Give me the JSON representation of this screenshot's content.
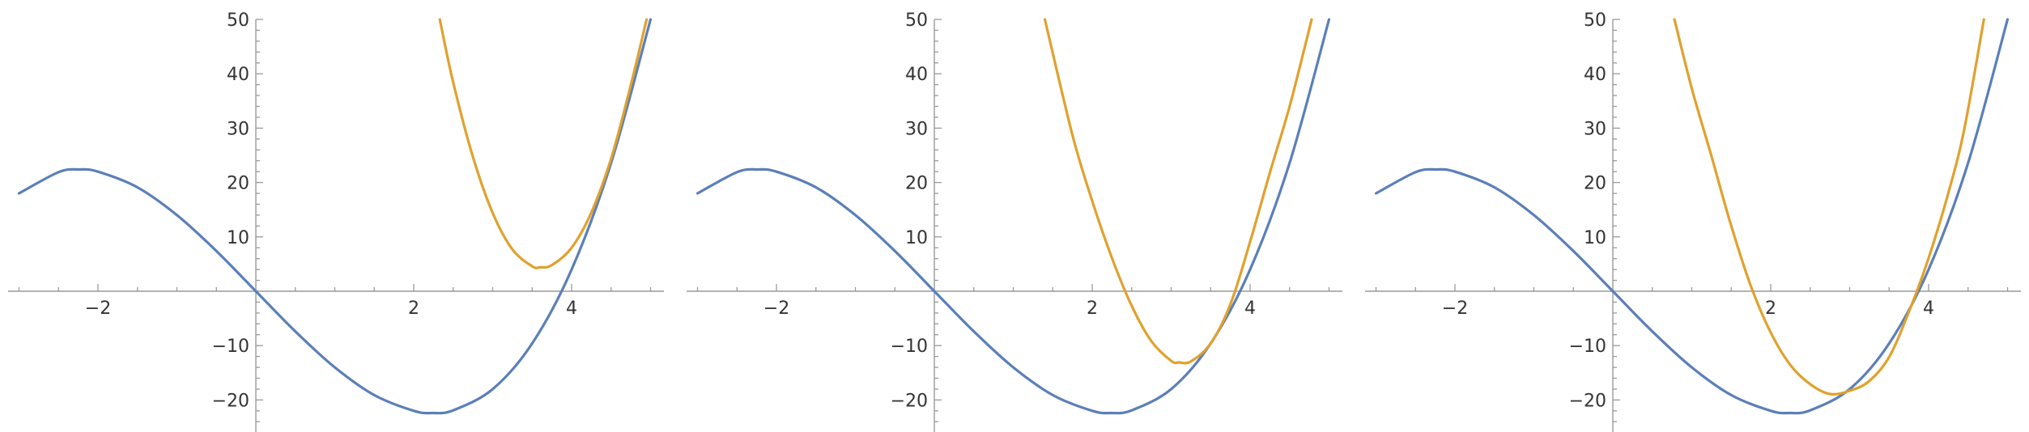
{
  "colors": {
    "background": "#ffffff",
    "axis": "#9a9a9a",
    "tick_label": "#333333",
    "series_1": "#5b7fb8",
    "series_2": "#e0a12e"
  },
  "chart_data": [
    {
      "type": "line",
      "xlim": [
        -3.1,
        5.2
      ],
      "ylim": [
        -25,
        50
      ],
      "grid": false,
      "legend": "none",
      "x_ticks": [
        {
          "v": -2,
          "t": "−2"
        },
        {
          "v": 2,
          "t": "2"
        },
        {
          "v": 4,
          "t": "4"
        }
      ],
      "y_ticks": [
        {
          "v": -20,
          "t": "−20"
        },
        {
          "v": -10,
          "t": "−10"
        },
        {
          "v": 10,
          "t": "10"
        },
        {
          "v": 20,
          "t": "20"
        },
        {
          "v": 30,
          "t": "30"
        },
        {
          "v": 40,
          "t": "40"
        },
        {
          "v": 50,
          "t": "50"
        }
      ],
      "series": [
        {
          "x": [
            -3.0,
            -2.5,
            -2.236,
            -2.0,
            -1.5,
            -1.0,
            -0.5,
            0.0,
            0.5,
            1.0,
            1.5,
            2.0,
            2.236,
            2.5,
            3.0,
            3.5,
            4.0,
            4.5,
            5.0
          ],
          "y": [
            18.0,
            21.9,
            22.4,
            22.0,
            19.1,
            14.0,
            7.4,
            0.0,
            -7.4,
            -14.0,
            -19.1,
            -22.0,
            -22.4,
            -21.9,
            -18.0,
            -9.6,
            4.0,
            23.6,
            50.0
          ]
        },
        {
          "x": [
            2.33,
            2.5,
            2.75,
            3.0,
            3.25,
            3.5,
            3.6,
            3.75,
            4.0,
            4.25,
            4.5,
            4.75,
            4.95
          ],
          "y": [
            50.0,
            38.4,
            24.7,
            14.4,
            7.7,
            4.6,
            4.4,
            4.8,
            8.0,
            14.5,
            24.4,
            37.9,
            50.0
          ]
        }
      ]
    },
    {
      "type": "line",
      "xlim": [
        -3.1,
        5.2
      ],
      "ylim": [
        -25,
        50
      ],
      "grid": false,
      "legend": "none",
      "x_ticks": [
        {
          "v": -2,
          "t": "−2"
        },
        {
          "v": 2,
          "t": "2"
        },
        {
          "v": 4,
          "t": "4"
        }
      ],
      "y_ticks": [
        {
          "v": -20,
          "t": "−20"
        },
        {
          "v": -10,
          "t": "−10"
        },
        {
          "v": 10,
          "t": "10"
        },
        {
          "v": 20,
          "t": "20"
        },
        {
          "v": 30,
          "t": "30"
        },
        {
          "v": 40,
          "t": "40"
        },
        {
          "v": 50,
          "t": "50"
        }
      ],
      "series": [
        {
          "x": [
            -3.0,
            -2.5,
            -2.236,
            -2.0,
            -1.5,
            -1.0,
            -0.5,
            0.0,
            0.5,
            1.0,
            1.5,
            2.0,
            2.236,
            2.5,
            3.0,
            3.5,
            4.0,
            4.5,
            5.0
          ],
          "y": [
            18.0,
            21.9,
            22.4,
            22.0,
            19.1,
            14.0,
            7.4,
            0.0,
            -7.4,
            -14.0,
            -19.1,
            -22.0,
            -22.4,
            -21.9,
            -18.0,
            -9.6,
            4.0,
            23.6,
            50.0
          ]
        },
        {
          "x": [
            1.4,
            1.75,
            2.0,
            2.25,
            2.5,
            2.75,
            3.0,
            3.1,
            3.25,
            3.5,
            3.75,
            4.0,
            4.25,
            4.5,
            4.78
          ],
          "y": [
            50.0,
            28.7,
            16.6,
            6.1,
            -2.7,
            -9.2,
            -12.8,
            -13.1,
            -12.9,
            -9.6,
            -2.4,
            9.1,
            21.8,
            34.0,
            50.0
          ]
        }
      ]
    },
    {
      "type": "line",
      "xlim": [
        -3.1,
        5.2
      ],
      "ylim": [
        -25,
        50
      ],
      "grid": false,
      "legend": "none",
      "x_ticks": [
        {
          "v": -2,
          "t": "−2"
        },
        {
          "v": 2,
          "t": "2"
        },
        {
          "v": 4,
          "t": "4"
        }
      ],
      "y_ticks": [
        {
          "v": -20,
          "t": "−20"
        },
        {
          "v": -10,
          "t": "−10"
        },
        {
          "v": 10,
          "t": "10"
        },
        {
          "v": 20,
          "t": "20"
        },
        {
          "v": 30,
          "t": "30"
        },
        {
          "v": 40,
          "t": "40"
        },
        {
          "v": 50,
          "t": "50"
        }
      ],
      "series": [
        {
          "x": [
            -3.0,
            -2.5,
            -2.236,
            -2.0,
            -1.5,
            -1.0,
            -0.5,
            0.0,
            0.5,
            1.0,
            1.5,
            2.0,
            2.236,
            2.5,
            3.0,
            3.5,
            4.0,
            4.5,
            5.0
          ],
          "y": [
            18.0,
            21.9,
            22.4,
            22.0,
            19.1,
            14.0,
            7.4,
            0.0,
            -7.4,
            -14.0,
            -19.1,
            -22.0,
            -22.4,
            -21.9,
            -18.0,
            -9.6,
            4.0,
            23.6,
            50.0
          ]
        },
        {
          "x": [
            0.78,
            1.0,
            1.25,
            1.5,
            1.75,
            2.0,
            2.25,
            2.5,
            2.75,
            3.0,
            3.25,
            3.5,
            3.75,
            4.0,
            4.25,
            4.45,
            4.7
          ],
          "y": [
            50.0,
            37.3,
            24.8,
            12.0,
            0.9,
            -7.6,
            -13.6,
            -17.1,
            -18.9,
            -18.3,
            -16.5,
            -12.1,
            -3.8,
            6.1,
            18.1,
            29.7,
            50.0
          ]
        }
      ]
    }
  ]
}
